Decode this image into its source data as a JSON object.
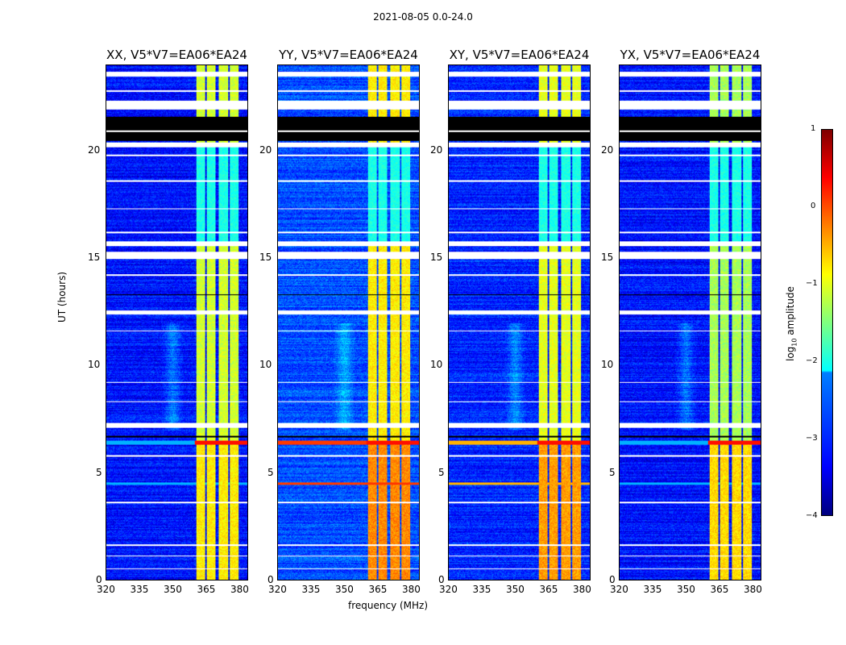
{
  "figure": {
    "suptitle": "2021-08-05 0.0-24.0"
  },
  "chart_data": {
    "type": "heatmap",
    "title": "2021-08-05 0.0-24.0",
    "xlabel": "frequency (MHz)",
    "ylabel": "UT (hours)",
    "xlim": [
      320,
      384
    ],
    "ylim": [
      0,
      24
    ],
    "xticks": [
      "320",
      "335",
      "350",
      "365",
      "380"
    ],
    "xtick_values": [
      320,
      335,
      350,
      365,
      380
    ],
    "yticks": [
      "0",
      "5",
      "10",
      "15",
      "20"
    ],
    "ytick_values": [
      0,
      5,
      10,
      15,
      20
    ],
    "colorbar": {
      "label_main": "log",
      "label_sub": "10",
      "label_rest": " amplitude",
      "range": [
        -4,
        1
      ],
      "ticks": [
        "1",
        "0",
        "−1",
        "−2",
        "−3",
        "−4"
      ],
      "tick_values": [
        1,
        0,
        -1,
        -2,
        -3,
        -4
      ],
      "colormap": "jet"
    },
    "rfi_channels_mhz": [
      [
        360.5,
        364.8
      ],
      [
        365.5,
        369.5
      ],
      [
        370.7,
        375
      ],
      [
        375.7,
        379.7
      ]
    ],
    "flagged_white_hours": [
      [
        23.5,
        23.7
      ],
      [
        21.97,
        22.35
      ],
      [
        20.2,
        20.4
      ],
      [
        15.6,
        15.8
      ],
      [
        15.0,
        15.3
      ],
      [
        12.4,
        12.6
      ],
      [
        7.1,
        7.35
      ],
      [
        5.75,
        5.85
      ],
      [
        22.8,
        22.85
      ],
      [
        19.8,
        19.85
      ],
      [
        18.6,
        18.65
      ],
      [
        17.3,
        17.35
      ],
      [
        16.2,
        16.25
      ],
      [
        14.2,
        14.25
      ],
      [
        11.6,
        11.65
      ],
      [
        9.2,
        9.25
      ],
      [
        8.3,
        8.35
      ],
      [
        3.6,
        3.65
      ],
      [
        1.6,
        1.65
      ],
      [
        1.1,
        1.15
      ],
      [
        0.5,
        0.55
      ]
    ],
    "flagged_black_hours": [
      [
        20.5,
        21.6
      ],
      [
        6.65,
        6.72
      ],
      [
        13.3,
        13.35
      ]
    ],
    "panels": [
      {
        "title": "XX, V5*V7=EA06*EA24",
        "background_log": -3.3,
        "channel_log": -1.1,
        "early_channel_log": -0.8,
        "line_4p5_log": -2.5
      },
      {
        "title": "YY, V5*V7=EA06*EA24",
        "background_log": -3.0,
        "channel_log": -0.8,
        "early_channel_log": -0.3,
        "line_4p5_log": 0.1
      },
      {
        "title": "XY, V5*V7=EA06*EA24",
        "background_log": -3.2,
        "channel_log": -1.0,
        "early_channel_log": -0.4,
        "line_4p5_log": -0.5
      },
      {
        "title": "YX, V5*V7=EA06*EA24",
        "background_log": -3.3,
        "channel_log": -1.3,
        "early_channel_log": -0.7,
        "line_4p5_log": -2.5
      }
    ]
  }
}
